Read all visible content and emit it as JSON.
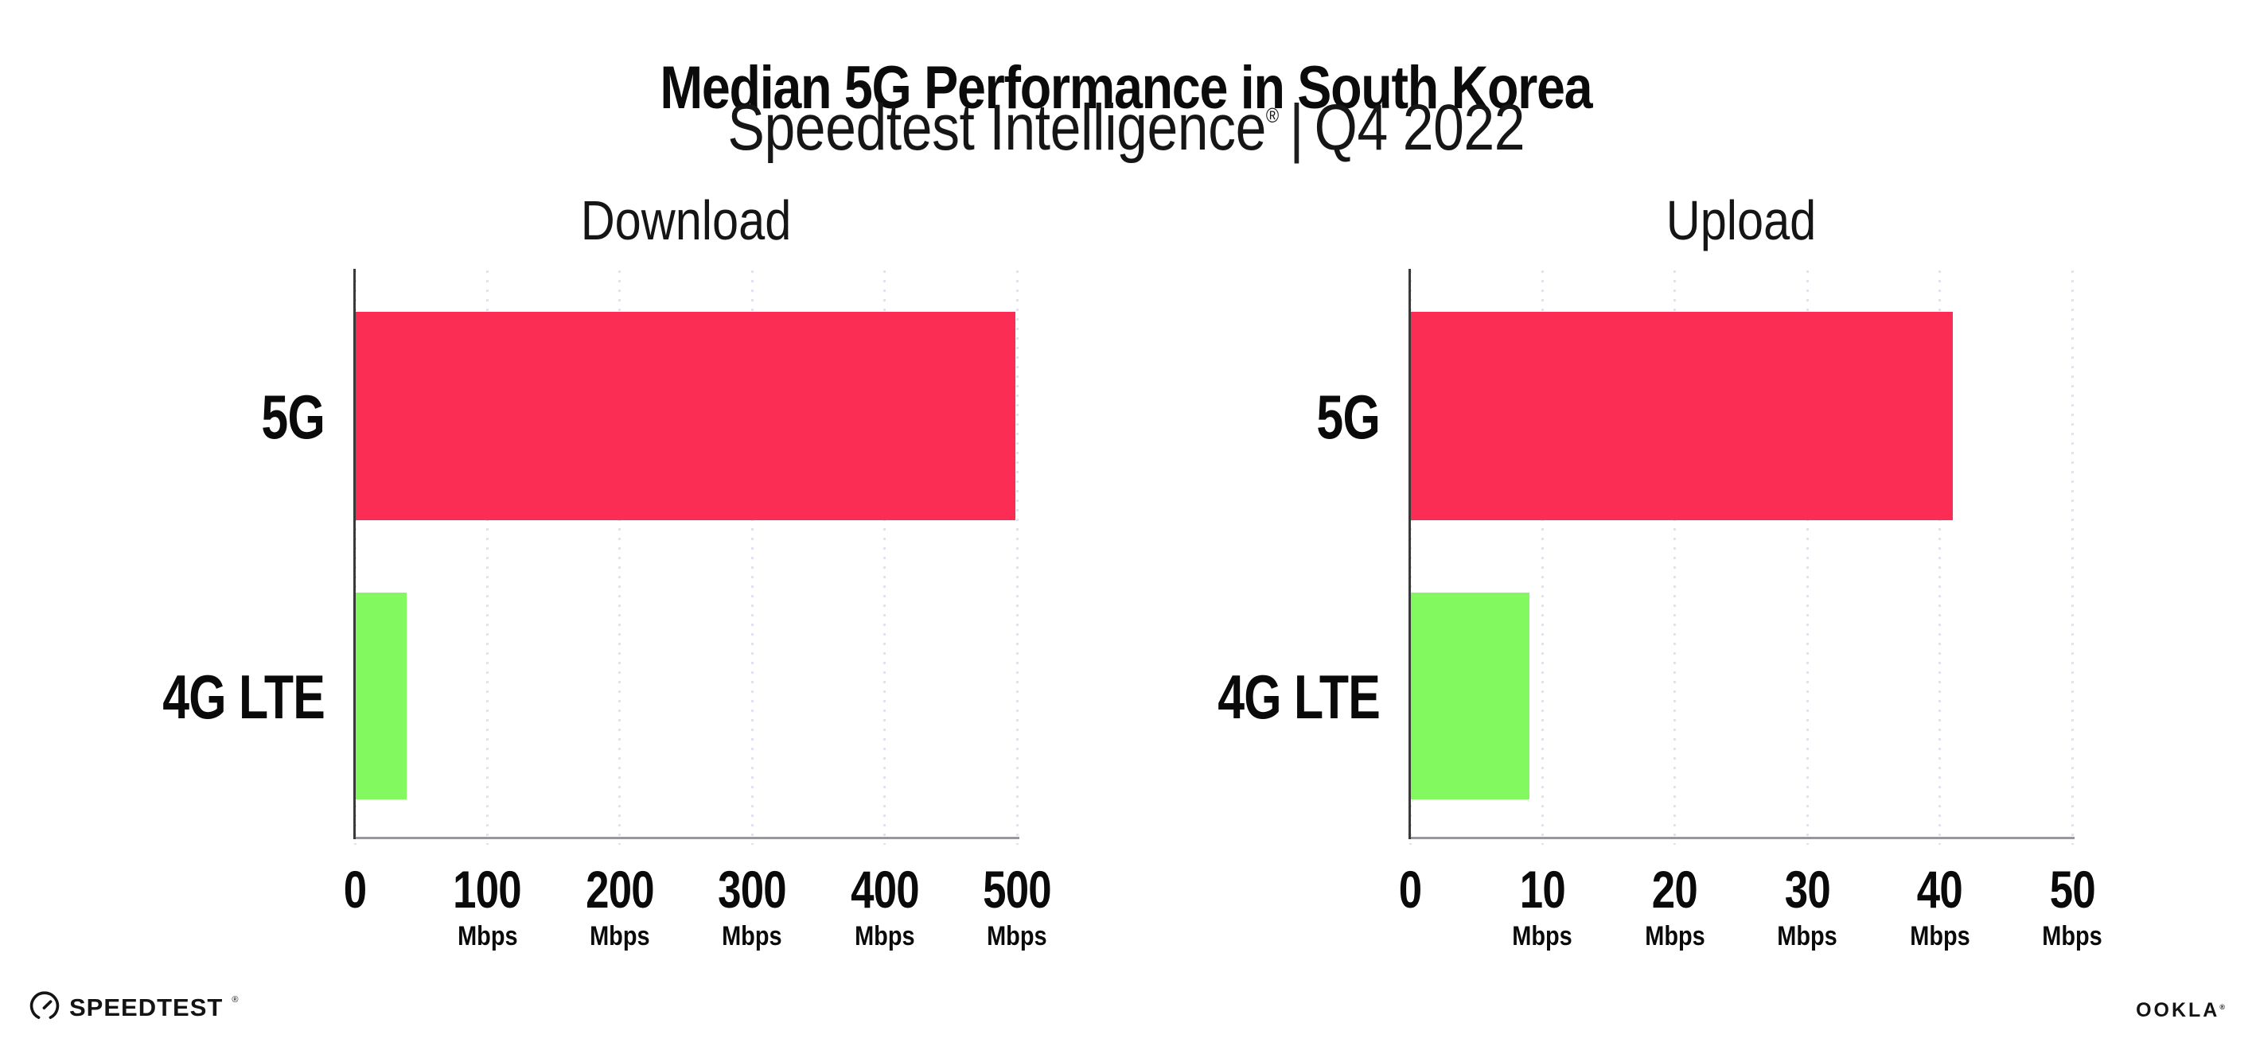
{
  "header": {
    "title": "Median 5G Performance in South Korea",
    "subtitle_brand": "Speedtest Intelligence",
    "subtitle_registered": "®",
    "subtitle_separator": "|",
    "subtitle_period": "Q4 2022"
  },
  "chart_data": [
    {
      "type": "bar",
      "orientation": "horizontal",
      "title": "Download",
      "categories": [
        "5G",
        "4G LTE"
      ],
      "values": [
        499,
        39
      ],
      "unit": "Mbps",
      "xlim": [
        0,
        500
      ],
      "xticks": [
        0,
        100,
        200,
        300,
        400,
        500
      ],
      "tick_unit": "Mbps",
      "bar_colors": [
        "#fc2d55",
        "#82fa5f"
      ],
      "grid": "dotted-vertical",
      "legend": "none"
    },
    {
      "type": "bar",
      "orientation": "horizontal",
      "title": "Upload",
      "categories": [
        "5G",
        "4G LTE"
      ],
      "values": [
        41,
        9
      ],
      "unit": "Mbps",
      "xlim": [
        0,
        50
      ],
      "xticks": [
        0,
        10,
        20,
        30,
        40,
        50
      ],
      "tick_unit": "Mbps",
      "bar_colors": [
        "#fc2d55",
        "#82fa5f"
      ],
      "grid": "dotted-vertical",
      "legend": "none"
    }
  ],
  "colors": {
    "bar_5g": "#fc2d55",
    "bar_4g_lte": "#82fa5f",
    "gridline": "#e2e2ee",
    "y_axis": "#3a3a3a",
    "x_axis": "#97979c",
    "text": "#0a0a0a",
    "background": "#ffffff"
  },
  "footer": {
    "speedtest_logo": "SPEEDTEST",
    "speedtest_registered": "®",
    "ookla_logo": "OOKLA",
    "ookla_registered": "®"
  }
}
